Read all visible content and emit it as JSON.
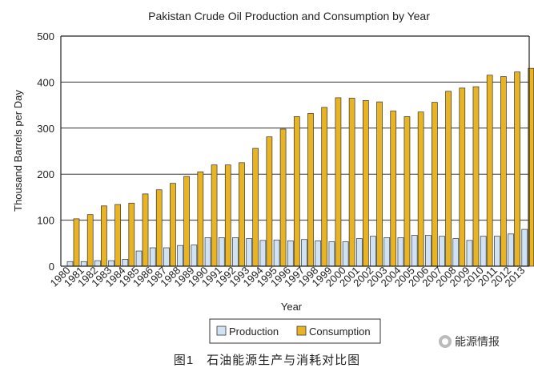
{
  "chart_data": {
    "type": "bar",
    "title": "Pakistan Crude Oil Production and Consumption by Year",
    "xlabel": "Year",
    "ylabel": "Thousand Barrels per Day",
    "ylim": [
      0,
      500
    ],
    "yticks": [
      0,
      100,
      200,
      300,
      400,
      500
    ],
    "grid": true,
    "legend_position": "bottom",
    "categories": [
      "1980",
      "1981",
      "1982",
      "1983",
      "1984",
      "1985",
      "1986",
      "1987",
      "1988",
      "1989",
      "1990",
      "1991",
      "1992",
      "1993",
      "1994",
      "1995",
      "1996",
      "1997",
      "1998",
      "1999",
      "2000",
      "2001",
      "2002",
      "2003",
      "2004",
      "2005",
      "2006",
      "2007",
      "2008",
      "2009",
      "2010",
      "2011",
      "2012",
      "2013"
    ],
    "series": [
      {
        "name": "Production",
        "color": "#cfe3f4",
        "values": [
          10,
          10,
          12,
          12,
          15,
          33,
          40,
          40,
          45,
          46,
          62,
          62,
          62,
          60,
          56,
          57,
          55,
          58,
          55,
          53,
          53,
          60,
          65,
          62,
          62,
          67,
          67,
          65,
          60,
          56,
          65,
          65,
          70,
          80
        ]
      },
      {
        "name": "Consumption",
        "color": "#e8b423",
        "values": [
          103,
          112,
          131,
          134,
          137,
          157,
          166,
          180,
          195,
          205,
          220,
          220,
          225,
          256,
          281,
          298,
          325,
          332,
          345,
          366,
          365,
          360,
          357,
          337,
          325,
          335,
          356,
          380,
          387,
          390,
          415,
          412,
          422,
          430
        ]
      }
    ]
  },
  "caption": "图1　石油能源生产与消耗对比图",
  "watermark": "能源情报"
}
